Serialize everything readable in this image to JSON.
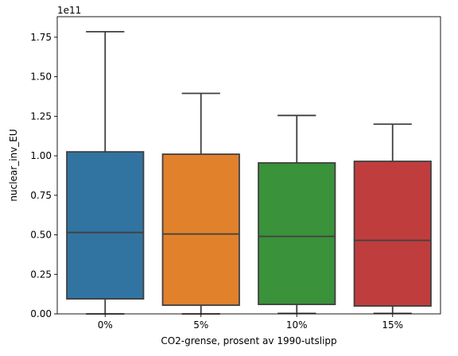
{
  "chart_data": {
    "type": "box",
    "xlabel": "CO2-grense, prosent av 1990-utslipp",
    "ylabel": "nuclear_inv_EU",
    "y_offset_label": "1e11",
    "y_scale_multiplier": 100000000000.0,
    "ylim": [
      0,
      1.88
    ],
    "yticks": [
      "0.00",
      "0.25",
      "0.50",
      "0.75",
      "1.00",
      "1.25",
      "1.50",
      "1.75"
    ],
    "ytick_values": [
      0,
      0.25,
      0.5,
      0.75,
      1.0,
      1.25,
      1.5,
      1.75
    ],
    "categories": [
      "0%",
      "5%",
      "10%",
      "15%"
    ],
    "colors": [
      "#3274a1",
      "#e1812c",
      "#3a923a",
      "#c03d3e"
    ],
    "boxes": [
      {
        "category": "0%",
        "whisker_low": 0.0,
        "q1": 0.095,
        "median": 0.515,
        "q3": 1.025,
        "whisker_high": 1.785
      },
      {
        "category": "5%",
        "whisker_low": 0.0,
        "q1": 0.055,
        "median": 0.505,
        "q3": 1.01,
        "whisker_high": 1.395
      },
      {
        "category": "10%",
        "whisker_low": 0.003,
        "q1": 0.06,
        "median": 0.49,
        "q3": 0.955,
        "whisker_high": 1.255
      },
      {
        "category": "15%",
        "whisker_low": 0.003,
        "q1": 0.05,
        "median": 0.465,
        "q3": 0.965,
        "whisker_high": 1.2
      }
    ]
  }
}
